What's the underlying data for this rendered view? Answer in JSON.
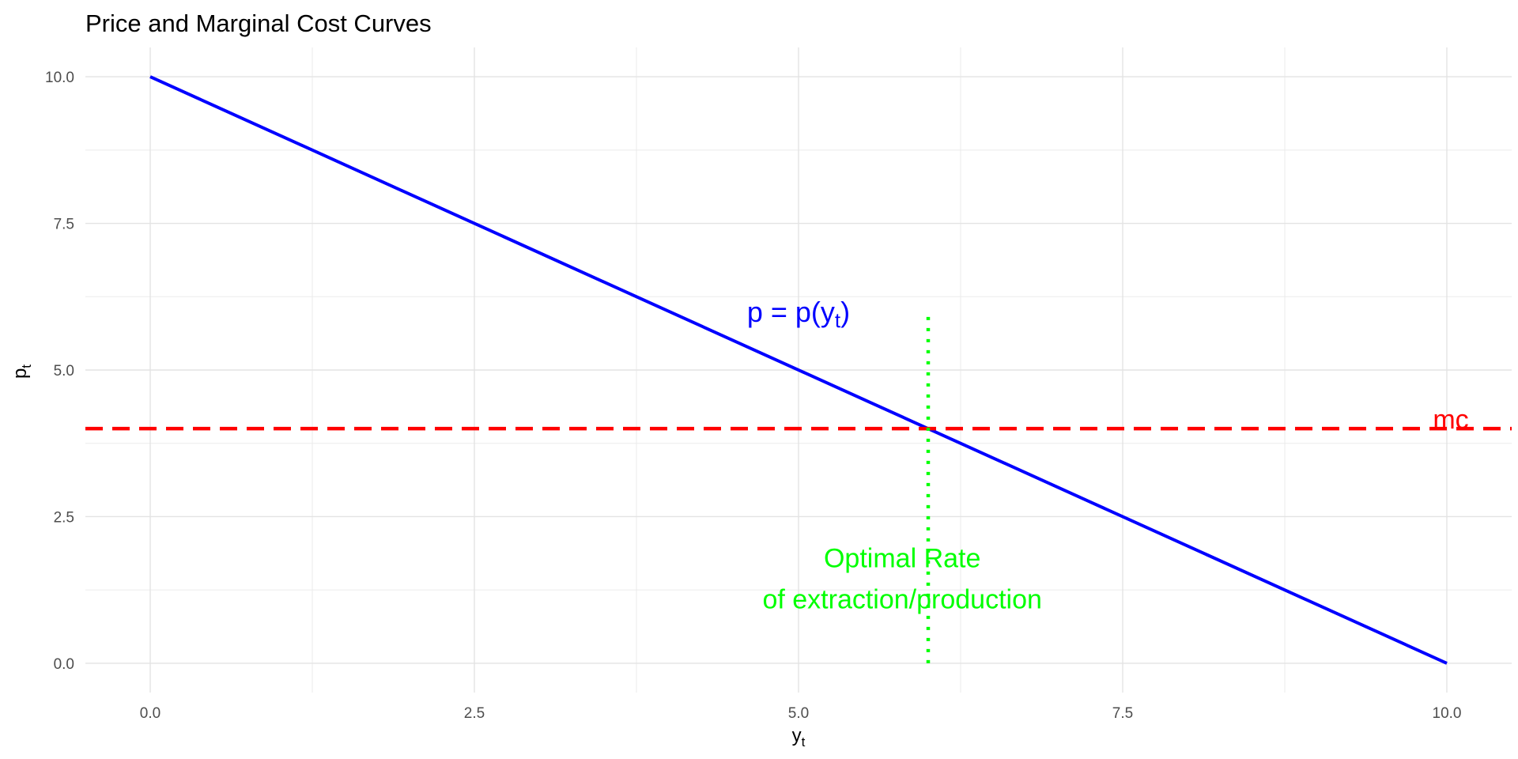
{
  "chart_data": {
    "type": "line",
    "title": "Price and Marginal Cost Curves",
    "xlabel": {
      "main": "y",
      "sub": "t"
    },
    "ylabel": {
      "main": "p",
      "sub": "t"
    },
    "xlim": [
      -0.5,
      10.5
    ],
    "ylim": [
      -0.5,
      10.5
    ],
    "x_ticks": [
      0,
      2.5,
      5,
      7.5,
      10
    ],
    "x_tick_labels": [
      "0.0",
      "2.5",
      "5.0",
      "7.5",
      "10.0"
    ],
    "y_ticks": [
      0,
      2.5,
      5,
      7.5,
      10
    ],
    "y_tick_labels": [
      "0.0",
      "2.5",
      "5.0",
      "7.5",
      "10.0"
    ],
    "grid": true,
    "series": [
      {
        "kind": "line",
        "x": [
          0,
          10
        ],
        "y": [
          10,
          0
        ],
        "color": "#0000ff",
        "style": "solid"
      },
      {
        "kind": "hline",
        "y": 4,
        "color": "#ff0000",
        "style": "dashed"
      },
      {
        "kind": "vline",
        "x": 6,
        "y_range": [
          0,
          6
        ],
        "color": "#00ff00",
        "style": "dotted"
      }
    ],
    "annotations": [
      {
        "kind": "demand",
        "text_main": "p = p(y",
        "text_sub": "t",
        "text_close": ")",
        "x": 5.0,
        "y": 6.0,
        "color": "#0000ff"
      },
      {
        "kind": "mc",
        "text": "mc",
        "x": 10.0,
        "y": 4.15,
        "color": "#ff0000"
      },
      {
        "kind": "optimal1",
        "text": "Optimal Rate",
        "x": 5.8,
        "y": 1.8,
        "color": "#00ff00"
      },
      {
        "kind": "optimal2",
        "text": "of extraction/production",
        "x": 5.8,
        "y": 1.1,
        "color": "#00ff00"
      }
    ]
  }
}
